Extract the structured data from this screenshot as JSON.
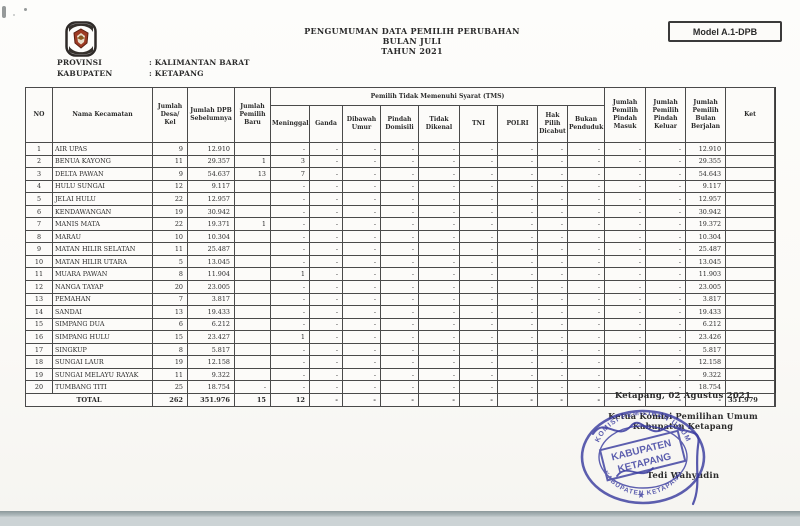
{
  "page": {
    "title_lines": [
      "PENGUMUMAN DATA PEMILIH PERUBAHAN",
      "BULAN JULI",
      "TAHUN 2021"
    ],
    "model_label": "Model A.1-DPB",
    "provinsi_label": "PROVINSI",
    "provinsi_value": ": KALIMANTAN BARAT",
    "kabupaten_label": "KABUPATEN",
    "kabupaten_value": ": KETAPANG",
    "logo_name": "kpu-logo"
  },
  "table": {
    "header": {
      "no": "NO",
      "nama": "Nama Kecamatan",
      "desa": "Jumlah Desa/ Kel",
      "dpb": "Jumlah DPB Sebelumnya",
      "baru": "Jumlah Pemilih Baru",
      "tms_group": "Pemilih Tidak Memenuhi Syarat (TMS)",
      "tms": [
        "Meninggal",
        "Ganda",
        "Dibawah Umur",
        "Pindah Domisili",
        "Tidak Dikenal",
        "TNI",
        "POLRI",
        "Hak Pilih Dicabut",
        "Bukan Penduduk"
      ],
      "masuk": "Jumlah Pemilih Pindah Masuk",
      "keluar": "Jumlah Pemilih Pindah Keluar",
      "berjalan": "Jumlah Pemilih Bulan Berjalan",
      "ket": "Ket"
    },
    "rows": [
      [
        "1",
        "AIR UPAS",
        "9",
        "12.910",
        "",
        "-",
        "-",
        "-",
        "-",
        "-",
        "-",
        "-",
        "-",
        "-",
        "-",
        "-",
        "12.910",
        ""
      ],
      [
        "2",
        "BENUA KAYONG",
        "11",
        "29.357",
        "1",
        "3",
        "-",
        "-",
        "-",
        "-",
        "-",
        "-",
        "-",
        "-",
        "-",
        "-",
        "29.355",
        ""
      ],
      [
        "3",
        "DELTA PAWAN",
        "9",
        "54.637",
        "13",
        "7",
        "-",
        "-",
        "-",
        "-",
        "-",
        "-",
        "-",
        "-",
        "-",
        "-",
        "54.643",
        ""
      ],
      [
        "4",
        "HULU SUNGAI",
        "12",
        "9.117",
        "",
        "-",
        "-",
        "-",
        "-",
        "-",
        "-",
        "-",
        "-",
        "-",
        "-",
        "-",
        "9.117",
        ""
      ],
      [
        "5",
        "JELAI HULU",
        "22",
        "12.957",
        "",
        "-",
        "-",
        "-",
        "-",
        "-",
        "-",
        "-",
        "-",
        "-",
        "-",
        "-",
        "12.957",
        ""
      ],
      [
        "6",
        "KENDAWANGAN",
        "19",
        "30.942",
        "",
        "-",
        "-",
        "-",
        "-",
        "-",
        "-",
        "-",
        "-",
        "-",
        "-",
        "-",
        "30.942",
        ""
      ],
      [
        "7",
        "MANIS MATA",
        "22",
        "19.371",
        "1",
        "-",
        "-",
        "-",
        "-",
        "-",
        "-",
        "-",
        "-",
        "-",
        "-",
        "-",
        "19.372",
        ""
      ],
      [
        "8",
        "MARAU",
        "10",
        "10.304",
        "",
        "-",
        "-",
        "-",
        "-",
        "-",
        "-",
        "-",
        "-",
        "-",
        "-",
        "-",
        "10.304",
        ""
      ],
      [
        "9",
        "MATAN HILIR SELATAN",
        "11",
        "25.487",
        "",
        "-",
        "-",
        "-",
        "-",
        "-",
        "-",
        "-",
        "-",
        "-",
        "-",
        "-",
        "25.487",
        ""
      ],
      [
        "10",
        "MATAN HILIR UTARA",
        "5",
        "13.045",
        "",
        "-",
        "-",
        "-",
        "-",
        "-",
        "-",
        "-",
        "-",
        "-",
        "-",
        "-",
        "13.045",
        ""
      ],
      [
        "11",
        "MUARA PAWAN",
        "8",
        "11.904",
        "",
        "1",
        "-",
        "-",
        "-",
        "-",
        "-",
        "-",
        "-",
        "-",
        "-",
        "-",
        "11.903",
        ""
      ],
      [
        "12",
        "NANGA TAYAP",
        "20",
        "23.005",
        "",
        "-",
        "-",
        "-",
        "-",
        "-",
        "-",
        "-",
        "-",
        "-",
        "-",
        "-",
        "23.005",
        ""
      ],
      [
        "13",
        "PEMAHAN",
        "7",
        "3.817",
        "",
        "-",
        "-",
        "-",
        "-",
        "-",
        "-",
        "-",
        "-",
        "-",
        "-",
        "-",
        "3.817",
        ""
      ],
      [
        "14",
        "SANDAI",
        "13",
        "19.433",
        "",
        "-",
        "-",
        "-",
        "-",
        "-",
        "-",
        "-",
        "-",
        "-",
        "-",
        "-",
        "19.433",
        ""
      ],
      [
        "15",
        "SIMPANG DUA",
        "6",
        "6.212",
        "",
        "-",
        "-",
        "-",
        "-",
        "-",
        "-",
        "-",
        "-",
        "-",
        "-",
        "-",
        "6.212",
        ""
      ],
      [
        "16",
        "SIMPANG HULU",
        "15",
        "23.427",
        "",
        "1",
        "-",
        "-",
        "-",
        "-",
        "-",
        "-",
        "-",
        "-",
        "-",
        "-",
        "23.426",
        ""
      ],
      [
        "17",
        "SINGKUP",
        "8",
        "5.817",
        "",
        "-",
        "-",
        "-",
        "-",
        "-",
        "-",
        "-",
        "-",
        "-",
        "-",
        "-",
        "5.817",
        ""
      ],
      [
        "18",
        "SUNGAI LAUR",
        "19",
        "12.158",
        "",
        "-",
        "-",
        "-",
        "-",
        "-",
        "-",
        "-",
        "-",
        "-",
        "-",
        "-",
        "12.158",
        ""
      ],
      [
        "19",
        "SUNGAI MELAYU RAYAK",
        "11",
        "9.322",
        "",
        "-",
        "-",
        "-",
        "-",
        "-",
        "-",
        "-",
        "-",
        "-",
        "-",
        "-",
        "9.322",
        ""
      ],
      [
        "20",
        "TUMBANG TITI",
        "25",
        "18.754",
        "-",
        "-",
        "-",
        "-",
        "-",
        "-",
        "-",
        "-",
        "-",
        "-",
        "-",
        "-",
        "18.754",
        ""
      ]
    ],
    "total": [
      "TOTAL",
      "262",
      "351.976",
      "15",
      "12",
      "-",
      "-",
      "-",
      "-",
      "-",
      "-",
      "-",
      "-",
      "-",
      "-",
      "-",
      "351.979",
      ""
    ]
  },
  "footer": {
    "place_date": "Ketapang, 02 Agustus 2021",
    "signer_title_1": "Ketua Komisi Pemilihan Umum",
    "signer_title_2": "Kabupaten Ketapang",
    "signer_name": "Tedi Wahyudin",
    "stamp": {
      "ring_top": "KOMISI PEMILIHAN UMUM",
      "ring_bottom": "KABUPATEN KETAPANG",
      "center_line1": "KABUPATEN",
      "center_line2": "KETAPANG",
      "color": "#3b3da0"
    }
  }
}
